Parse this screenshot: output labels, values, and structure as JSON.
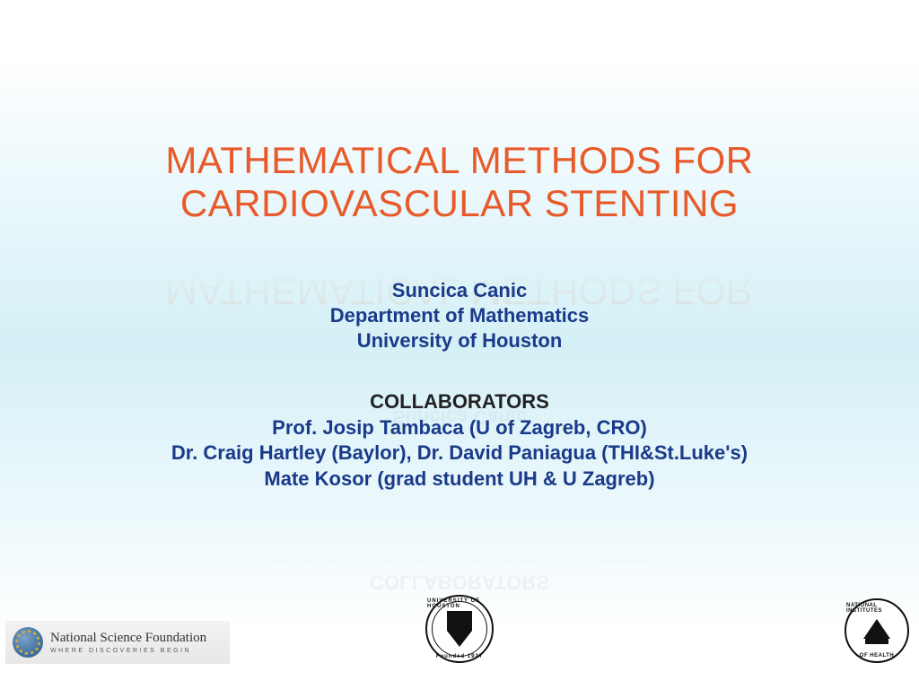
{
  "title": {
    "line1": "MATHEMATICAL METHODS FOR",
    "line2": "CARDIOVASCULAR STENTING",
    "color": "#e85a2a",
    "fontsize": 42
  },
  "author": {
    "name": "Suncica Canic",
    "dept": "Department of Mathematics",
    "univ": "University of Houston",
    "color": "#1a3a8a",
    "fontsize": 22
  },
  "collaborators": {
    "heading": "COLLABORATORS",
    "heading_color": "#222222",
    "line1": "Prof. Josip Tambaca (U of Zagreb, CRO)",
    "line2": "Dr. Craig Hartley (Baylor), Dr. David Paniagua (THI&St.Luke's)",
    "line3": "Mate Kosor (grad student UH & U Zagreb)",
    "color": "#1a3a8a",
    "fontsize": 22
  },
  "logos": {
    "nsf": {
      "main": "National Science Foundation",
      "sub": "WHERE DISCOVERIES BEGIN"
    },
    "uh": {
      "top": "UNIVERSITY OF HOUSTON",
      "bottom": "Founded 1927"
    },
    "nih": {
      "top": "NATIONAL INSTITUTES",
      "bottom": "OF HEALTH"
    }
  },
  "background": {
    "gradient_top": "#ffffff",
    "gradient_mid": "#d4f0f6",
    "gradient_bottom": "#ffffff"
  }
}
